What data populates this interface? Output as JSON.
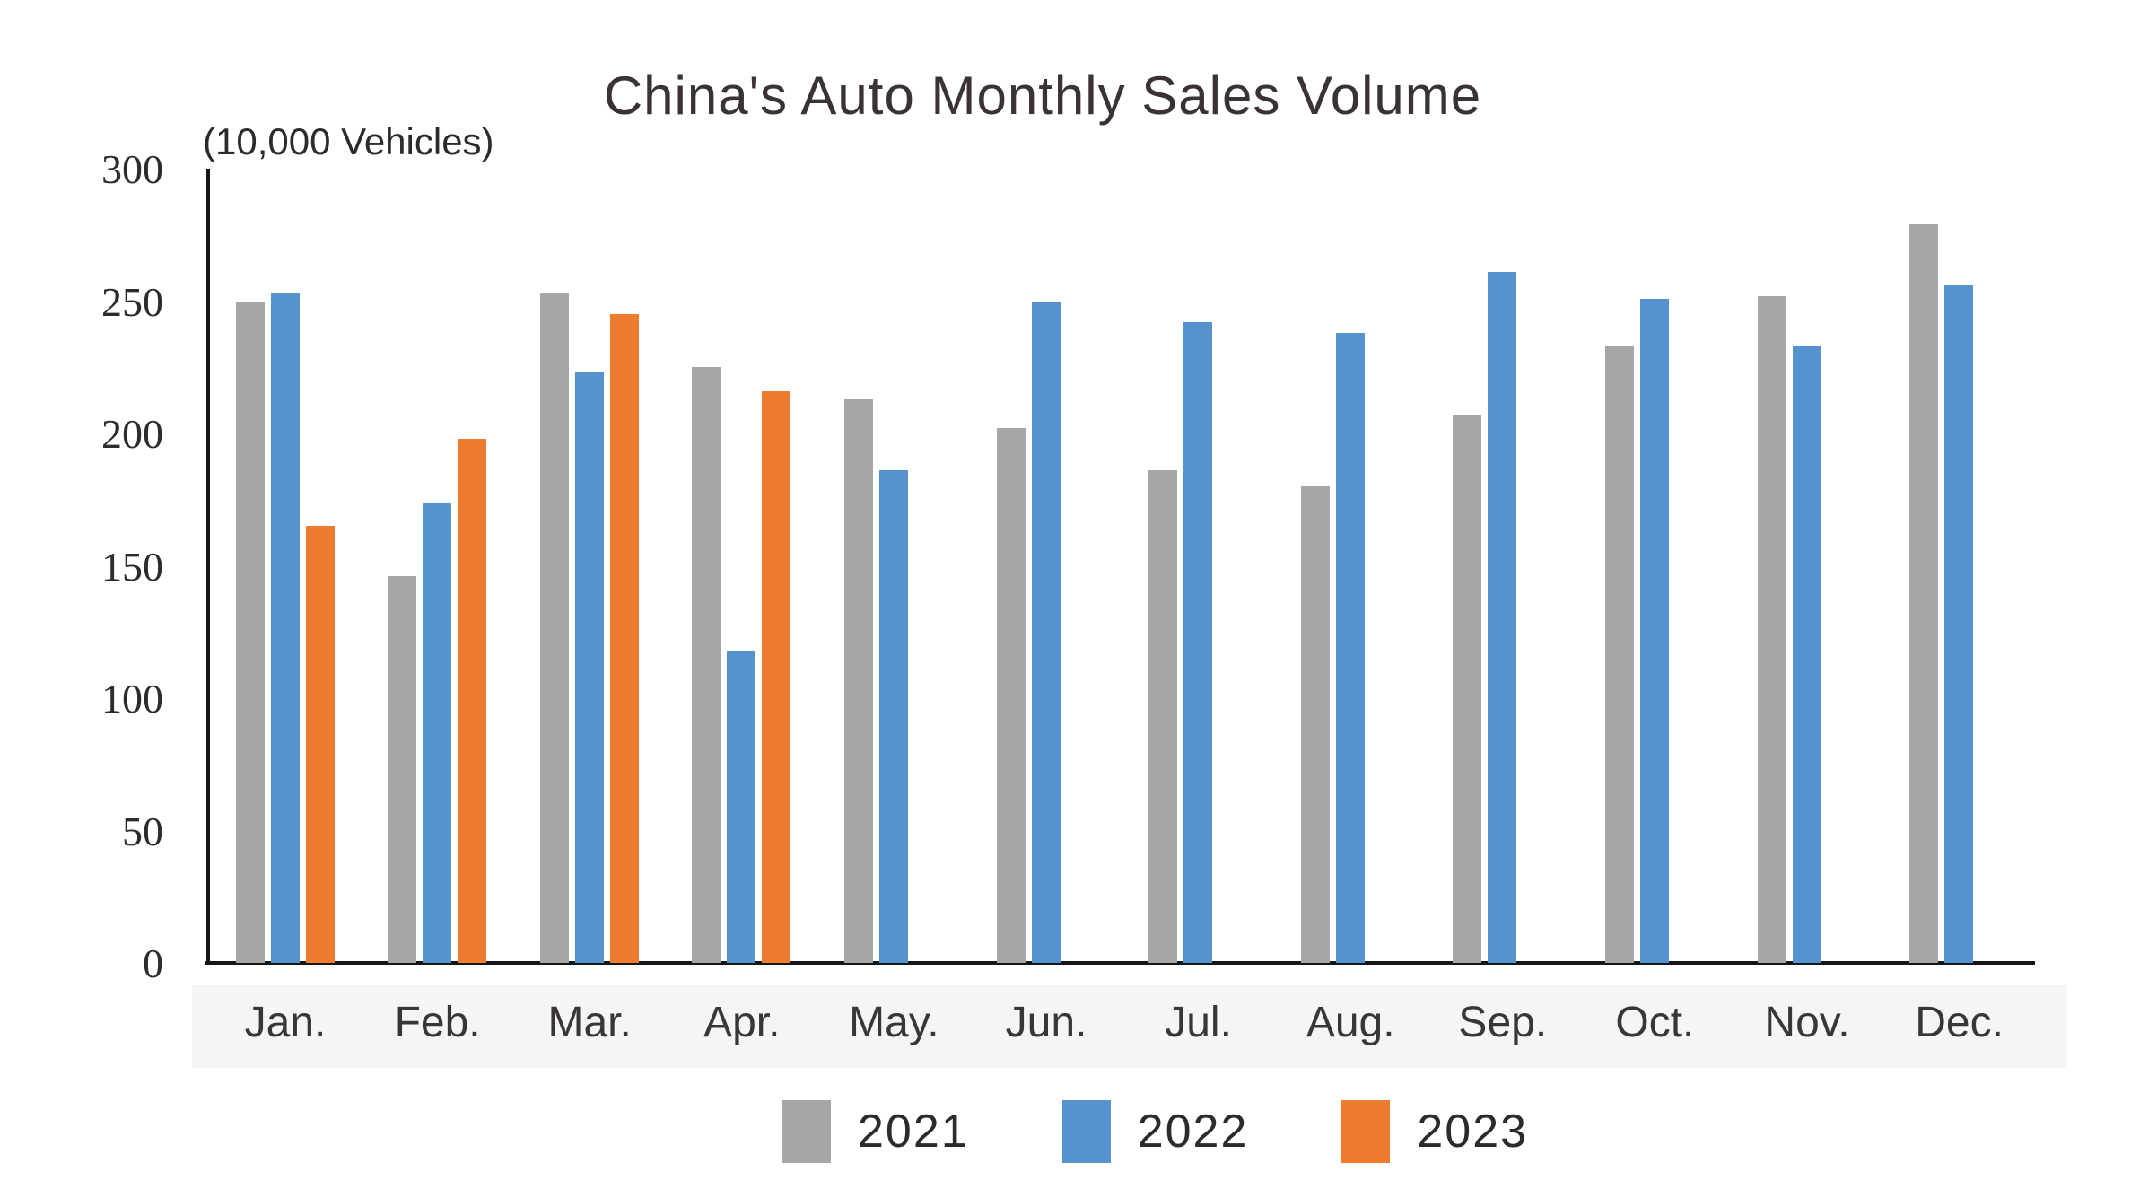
{
  "title": "China's Auto Monthly Sales Volume",
  "unit_label": "(10,000 Vehicles)",
  "chart_data": {
    "type": "bar",
    "title": "China's Auto Monthly Sales Volume",
    "ylabel": "(10,000 Vehicles)",
    "categories": [
      "Jan.",
      "Feb.",
      "Mar.",
      "Apr.",
      "May.",
      "Jun.",
      "Jul.",
      "Aug.",
      "Sep.",
      "Oct.",
      "Nov.",
      "Dec."
    ],
    "series": [
      {
        "name": "2021",
        "color": "#a6a6a6",
        "values": [
          250,
          146,
          253,
          225,
          213,
          202,
          186,
          180,
          207,
          233,
          252,
          279
        ]
      },
      {
        "name": "2022",
        "color": "#5592ce",
        "values": [
          253,
          174,
          223,
          118,
          186,
          250,
          242,
          238,
          261,
          251,
          233,
          256
        ]
      },
      {
        "name": "2023",
        "color": "#ed7c2f",
        "values": [
          165,
          198,
          245,
          216,
          null,
          null,
          null,
          null,
          null,
          null,
          null,
          null
        ]
      }
    ],
    "ylim": [
      0,
      300
    ],
    "y_ticks": [
      300,
      250,
      200,
      150,
      100,
      50,
      0
    ],
    "grid": false,
    "legend_position": "bottom"
  }
}
